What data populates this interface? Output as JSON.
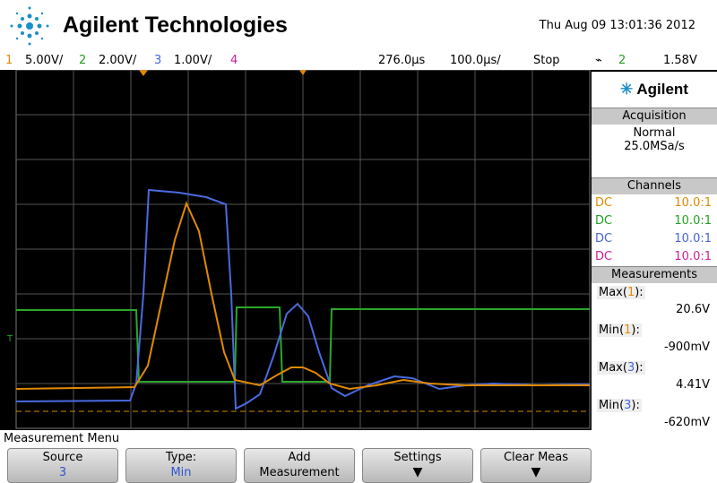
{
  "header": {
    "brand": "Agilent Technologies",
    "datetime": "Thu Aug 09 13:01:36 2012"
  },
  "status_bar": {
    "ch1": "1",
    "ch1_scale": "5.00V/",
    "ch2": "2",
    "ch2_scale": "2.00V/",
    "ch3": "3",
    "ch3_scale": "1.00V/",
    "ch4": "4",
    "time_delay": "276.0µs",
    "time_scale": "100.0µs/",
    "run_state": "Stop",
    "trigger_channel": "2",
    "trigger_level": "1.58V"
  },
  "side_panel": {
    "brand": "Agilent",
    "acquisition": {
      "title": "Acquisition",
      "mode": "Normal",
      "rate": "25.0MSa/s"
    },
    "channels": {
      "title": "Channels",
      "rows": [
        [
          "DC",
          "10.0:1"
        ],
        [
          "DC",
          "10.0:1"
        ],
        [
          "DC",
          "10.0:1"
        ],
        [
          "DC",
          "10.0:1"
        ]
      ]
    },
    "measurements": {
      "title": "Measurements",
      "items": [
        {
          "label_start": "Max(",
          "channel": "1",
          "label_end": "):",
          "value": "20.6V"
        },
        {
          "label_start": "Min(",
          "channel": "1",
          "label_end": "):",
          "value": "-900mV"
        },
        {
          "label_start": "Max(",
          "channel": "3",
          "label_end": "):",
          "value": "4.41V"
        },
        {
          "label_start": "Min(",
          "channel": "3",
          "label_end": "):",
          "value": "-620mV"
        }
      ]
    }
  },
  "menu": {
    "title": "Measurement Menu",
    "softkeys": [
      {
        "label": "Source",
        "value": "3"
      },
      {
        "label": "Type:",
        "value": "Min"
      },
      {
        "label": "Add",
        "value": "Measurement"
      },
      {
        "label": "Settings"
      },
      {
        "label": "Clear Meas"
      }
    ]
  }
}
